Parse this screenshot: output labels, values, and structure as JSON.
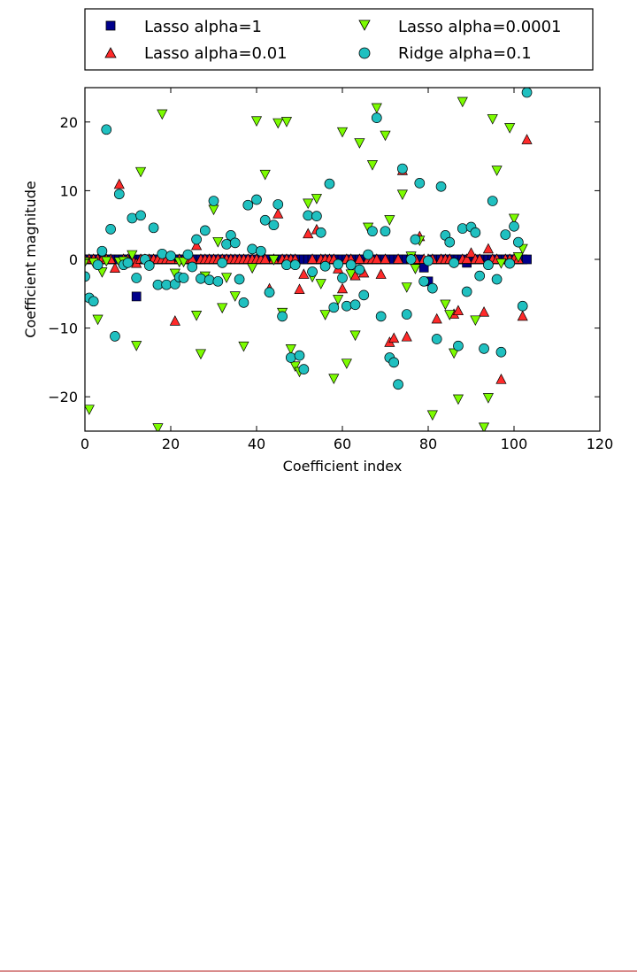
{
  "chart_data": {
    "type": "scatter",
    "xlabel": "Coefficient index",
    "ylabel": "Coefficient magnitude",
    "xlim": [
      0,
      120
    ],
    "ylim": [
      -25,
      25
    ],
    "x_ticks": [
      "0",
      "20",
      "40",
      "60",
      "80",
      "100",
      "120"
    ],
    "y_ticks": [
      "−20",
      "−10",
      "0",
      "10",
      "20"
    ],
    "grid": false,
    "legend_position": "top (above plot)",
    "series": [
      {
        "name": "Lasso alpha=1",
        "marker": "square",
        "color": "#00008b",
        "note": "all 104 coefficients at 0 except the listed ones",
        "zero_range": [
          0,
          103
        ],
        "nonzero": [
          {
            "x": 12,
            "y": -5.4
          },
          {
            "x": 79,
            "y": -1.2
          },
          {
            "x": 80,
            "y": -3.2
          },
          {
            "x": 89,
            "y": -0.5
          }
        ]
      },
      {
        "name": "Lasso alpha=0.01",
        "marker": "triangle-up",
        "color": "#ff2a2a",
        "points": [
          {
            "x": 7,
            "y": -1.3
          },
          {
            "x": 8,
            "y": 10.9
          },
          {
            "x": 12,
            "y": -0.6
          },
          {
            "x": 21,
            "y": -9.0
          },
          {
            "x": 26,
            "y": 2.0
          },
          {
            "x": 43,
            "y": -4.3
          },
          {
            "x": 45,
            "y": 6.6
          },
          {
            "x": 50,
            "y": -4.4
          },
          {
            "x": 51,
            "y": -2.2
          },
          {
            "x": 52,
            "y": 3.7
          },
          {
            "x": 54,
            "y": 4.3
          },
          {
            "x": 59,
            "y": -1.4
          },
          {
            "x": 60,
            "y": -4.3
          },
          {
            "x": 63,
            "y": -2.4
          },
          {
            "x": 65,
            "y": -2.0
          },
          {
            "x": 69,
            "y": -2.2
          },
          {
            "x": 71,
            "y": -12.1
          },
          {
            "x": 72,
            "y": -11.5
          },
          {
            "x": 74,
            "y": 12.9
          },
          {
            "x": 75,
            "y": -11.3
          },
          {
            "x": 78,
            "y": 3.3
          },
          {
            "x": 82,
            "y": -8.7
          },
          {
            "x": 86,
            "y": -8.0
          },
          {
            "x": 87,
            "y": -7.5
          },
          {
            "x": 90,
            "y": 0.9
          },
          {
            "x": 93,
            "y": -7.7
          },
          {
            "x": 94,
            "y": 1.5
          },
          {
            "x": 97,
            "y": -17.5
          },
          {
            "x": 102,
            "y": -8.3
          },
          {
            "x": 103,
            "y": 17.4
          }
        ],
        "zero_indices_note": "remaining indices 0-103 at approximately 0"
      },
      {
        "name": "Lasso alpha=0.0001",
        "marker": "triangle-down",
        "color": "#7cfc00",
        "points": [
          {
            "x": 0,
            "y": -0.3
          },
          {
            "x": 1,
            "y": -21.8
          },
          {
            "x": 2,
            "y": -0.4
          },
          {
            "x": 3,
            "y": -8.7
          },
          {
            "x": 4,
            "y": -1.8
          },
          {
            "x": 5,
            "y": -0.2
          },
          {
            "x": 8,
            "y": -0.3
          },
          {
            "x": 9,
            "y": -0.2
          },
          {
            "x": 11,
            "y": 0.7
          },
          {
            "x": 12,
            "y": -12.5
          },
          {
            "x": 13,
            "y": 12.8
          },
          {
            "x": 17,
            "y": -24.5
          },
          {
            "x": 18,
            "y": 21.2
          },
          {
            "x": 21,
            "y": -2.0
          },
          {
            "x": 22,
            "y": -0.3
          },
          {
            "x": 23,
            "y": -0.3
          },
          {
            "x": 26,
            "y": -8.1
          },
          {
            "x": 27,
            "y": -13.7
          },
          {
            "x": 28,
            "y": -2.4
          },
          {
            "x": 30,
            "y": 7.3
          },
          {
            "x": 31,
            "y": 2.6
          },
          {
            "x": 32,
            "y": -7.0
          },
          {
            "x": 33,
            "y": -2.6
          },
          {
            "x": 35,
            "y": -5.3
          },
          {
            "x": 37,
            "y": -12.6
          },
          {
            "x": 39,
            "y": -1.2
          },
          {
            "x": 40,
            "y": 20.2
          },
          {
            "x": 42,
            "y": 12.4
          },
          {
            "x": 44,
            "y": 0.0
          },
          {
            "x": 45,
            "y": 19.9
          },
          {
            "x": 46,
            "y": -7.7
          },
          {
            "x": 47,
            "y": 20.1
          },
          {
            "x": 48,
            "y": -13.0
          },
          {
            "x": 49,
            "y": -15.5
          },
          {
            "x": 50,
            "y": -16.3
          },
          {
            "x": 52,
            "y": 8.2
          },
          {
            "x": 53,
            "y": -2.5
          },
          {
            "x": 54,
            "y": 8.9
          },
          {
            "x": 55,
            "y": -3.5
          },
          {
            "x": 56,
            "y": -8.0
          },
          {
            "x": 58,
            "y": -17.3
          },
          {
            "x": 59,
            "y": -5.8
          },
          {
            "x": 60,
            "y": 18.6
          },
          {
            "x": 61,
            "y": -15.1
          },
          {
            "x": 62,
            "y": -2.1
          },
          {
            "x": 63,
            "y": -11.0
          },
          {
            "x": 64,
            "y": 17.0
          },
          {
            "x": 66,
            "y": 4.7
          },
          {
            "x": 67,
            "y": 13.8
          },
          {
            "x": 68,
            "y": 22.1
          },
          {
            "x": 70,
            "y": 18.1
          },
          {
            "x": 71,
            "y": 5.8
          },
          {
            "x": 74,
            "y": 9.5
          },
          {
            "x": 75,
            "y": -4.0
          },
          {
            "x": 76,
            "y": 0.5
          },
          {
            "x": 77,
            "y": -1.3
          },
          {
            "x": 78,
            "y": 2.8
          },
          {
            "x": 81,
            "y": -22.6
          },
          {
            "x": 84,
            "y": -6.5
          },
          {
            "x": 85,
            "y": -8.0
          },
          {
            "x": 86,
            "y": -13.6
          },
          {
            "x": 87,
            "y": -20.3
          },
          {
            "x": 88,
            "y": 23.0
          },
          {
            "x": 91,
            "y": -8.8
          },
          {
            "x": 93,
            "y": -24.4
          },
          {
            "x": 94,
            "y": -20.1
          },
          {
            "x": 95,
            "y": 20.5
          },
          {
            "x": 96,
            "y": 13.0
          },
          {
            "x": 97,
            "y": -0.5
          },
          {
            "x": 99,
            "y": 19.2
          },
          {
            "x": 100,
            "y": 6.0
          },
          {
            "x": 101,
            "y": 0.4
          },
          {
            "x": 102,
            "y": 1.6
          }
        ]
      },
      {
        "name": "Ridge alpha=0.1",
        "marker": "circle",
        "color": "#20c0c0",
        "points": [
          {
            "x": 0,
            "y": -2.5
          },
          {
            "x": 1,
            "y": -5.6
          },
          {
            "x": 2,
            "y": -6.1
          },
          {
            "x": 3,
            "y": -0.8
          },
          {
            "x": 4,
            "y": 1.2
          },
          {
            "x": 5,
            "y": 18.9
          },
          {
            "x": 6,
            "y": 4.4
          },
          {
            "x": 7,
            "y": -11.2
          },
          {
            "x": 8,
            "y": 9.5
          },
          {
            "x": 9,
            "y": -0.8
          },
          {
            "x": 10,
            "y": -0.5
          },
          {
            "x": 11,
            "y": 6.0
          },
          {
            "x": 12,
            "y": -2.7
          },
          {
            "x": 13,
            "y": 6.4
          },
          {
            "x": 14,
            "y": 0.0
          },
          {
            "x": 15,
            "y": -0.9
          },
          {
            "x": 16,
            "y": 4.6
          },
          {
            "x": 17,
            "y": -3.7
          },
          {
            "x": 18,
            "y": 0.8
          },
          {
            "x": 19,
            "y": -3.7
          },
          {
            "x": 20,
            "y": 0.5
          },
          {
            "x": 21,
            "y": -3.6
          },
          {
            "x": 22,
            "y": -2.6
          },
          {
            "x": 23,
            "y": -2.7
          },
          {
            "x": 24,
            "y": 0.7
          },
          {
            "x": 25,
            "y": -1.1
          },
          {
            "x": 26,
            "y": 2.9
          },
          {
            "x": 27,
            "y": -2.8
          },
          {
            "x": 28,
            "y": 4.2
          },
          {
            "x": 29,
            "y": -3.0
          },
          {
            "x": 30,
            "y": 8.5
          },
          {
            "x": 31,
            "y": -3.2
          },
          {
            "x": 32,
            "y": -0.5
          },
          {
            "x": 33,
            "y": 2.2
          },
          {
            "x": 34,
            "y": 3.5
          },
          {
            "x": 35,
            "y": 2.4
          },
          {
            "x": 36,
            "y": -2.9
          },
          {
            "x": 37,
            "y": -6.3
          },
          {
            "x": 38,
            "y": 7.9
          },
          {
            "x": 39,
            "y": 1.5
          },
          {
            "x": 40,
            "y": 8.7
          },
          {
            "x": 41,
            "y": 1.2
          },
          {
            "x": 42,
            "y": 5.7
          },
          {
            "x": 43,
            "y": -4.8
          },
          {
            "x": 44,
            "y": 5.0
          },
          {
            "x": 45,
            "y": 8.0
          },
          {
            "x": 46,
            "y": -8.3
          },
          {
            "x": 47,
            "y": -0.8
          },
          {
            "x": 48,
            "y": -14.3
          },
          {
            "x": 49,
            "y": -0.8
          },
          {
            "x": 50,
            "y": -14.0
          },
          {
            "x": 51,
            "y": -16.0
          },
          {
            "x": 52,
            "y": 6.4
          },
          {
            "x": 53,
            "y": -1.8
          },
          {
            "x": 54,
            "y": 6.3
          },
          {
            "x": 55,
            "y": 3.9
          },
          {
            "x": 56,
            "y": -1.0
          },
          {
            "x": 57,
            "y": 11.0
          },
          {
            "x": 58,
            "y": -7.0
          },
          {
            "x": 59,
            "y": -0.7
          },
          {
            "x": 60,
            "y": -2.7
          },
          {
            "x": 61,
            "y": -6.8
          },
          {
            "x": 62,
            "y": -0.8
          },
          {
            "x": 63,
            "y": -6.6
          },
          {
            "x": 64,
            "y": -1.5
          },
          {
            "x": 65,
            "y": -5.2
          },
          {
            "x": 66,
            "y": 0.7
          },
          {
            "x": 67,
            "y": 4.1
          },
          {
            "x": 68,
            "y": 20.6
          },
          {
            "x": 69,
            "y": -8.3
          },
          {
            "x": 70,
            "y": 4.1
          },
          {
            "x": 71,
            "y": -14.3
          },
          {
            "x": 72,
            "y": -15.0
          },
          {
            "x": 73,
            "y": -18.2
          },
          {
            "x": 74,
            "y": 13.2
          },
          {
            "x": 75,
            "y": -8.0
          },
          {
            "x": 76,
            "y": 0.0
          },
          {
            "x": 77,
            "y": 2.9
          },
          {
            "x": 78,
            "y": 11.1
          },
          {
            "x": 79,
            "y": -3.2
          },
          {
            "x": 80,
            "y": -0.2
          },
          {
            "x": 81,
            "y": -4.2
          },
          {
            "x": 82,
            "y": -11.6
          },
          {
            "x": 83,
            "y": 10.6
          },
          {
            "x": 84,
            "y": 3.5
          },
          {
            "x": 85,
            "y": 2.5
          },
          {
            "x": 86,
            "y": -0.5
          },
          {
            "x": 87,
            "y": -12.6
          },
          {
            "x": 88,
            "y": 4.5
          },
          {
            "x": 89,
            "y": -4.7
          },
          {
            "x": 90,
            "y": 4.7
          },
          {
            "x": 91,
            "y": 3.9
          },
          {
            "x": 92,
            "y": -2.4
          },
          {
            "x": 93,
            "y": -13.0
          },
          {
            "x": 94,
            "y": -0.8
          },
          {
            "x": 95,
            "y": 8.5
          },
          {
            "x": 96,
            "y": -2.9
          },
          {
            "x": 97,
            "y": -13.5
          },
          {
            "x": 98,
            "y": 3.6
          },
          {
            "x": 99,
            "y": -0.6
          },
          {
            "x": 100,
            "y": 4.8
          },
          {
            "x": 101,
            "y": 2.5
          },
          {
            "x": 102,
            "y": -6.8
          },
          {
            "x": 103,
            "y": 24.3
          }
        ]
      }
    ]
  }
}
